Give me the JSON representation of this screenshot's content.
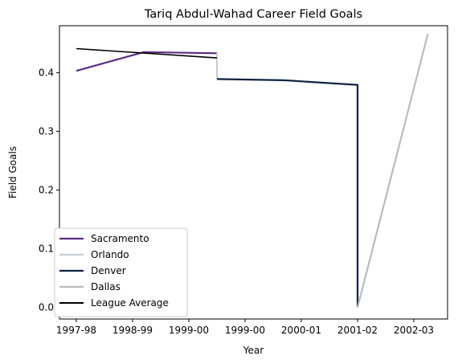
{
  "chart_data": {
    "type": "line",
    "title": "Tariq Abdul-Wahad Career Field Goals",
    "xlabel": "Year",
    "ylabel": "Field Goals",
    "x_ticks": [
      "1997-98",
      "1998-99",
      "1999-00",
      "1999-00",
      "2000-01",
      "2001-02",
      "2002-03"
    ],
    "y_ticks": [
      "0.0",
      "0.1",
      "0.2",
      "0.3",
      "0.4"
    ],
    "ylim": [
      -0.02,
      0.48
    ],
    "legend_position": "lower-left",
    "grid": false,
    "series": [
      {
        "name": "Sacramento",
        "color": "#5b2c83",
        "points": [
          [
            0,
            0.403
          ],
          [
            1.2,
            0.435
          ],
          [
            2.5,
            0.433
          ]
        ]
      },
      {
        "name": "Orlando",
        "color": "#c4ced4",
        "points": [
          [
            2.5,
            0.433
          ],
          [
            2.5,
            0.389
          ]
        ]
      },
      {
        "name": "Denver",
        "color": "#0e2240",
        "points": [
          [
            2.5,
            0.389
          ],
          [
            3.7,
            0.387
          ],
          [
            5.0,
            0.379
          ],
          [
            5.0,
            0.0
          ]
        ]
      },
      {
        "name": "Dallas",
        "color": "#bbbbbb",
        "points": [
          [
            5.0,
            0.0
          ],
          [
            6.25,
            0.466
          ]
        ]
      },
      {
        "name": "League Average",
        "color": "#000000",
        "points": [
          [
            0,
            0.441
          ],
          [
            2.5,
            0.425
          ]
        ]
      }
    ]
  }
}
